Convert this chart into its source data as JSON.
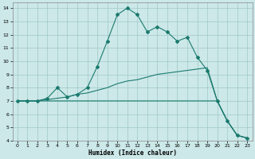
{
  "xlabel": "Humidex (Indice chaleur)",
  "bg_color": "#cce8e8",
  "grid_color": "#a0c8c8",
  "line_color": "#1a7a6e",
  "xlim": [
    -0.5,
    23.5
  ],
  "ylim": [
    4,
    14.4
  ],
  "xticks": [
    0,
    1,
    2,
    3,
    4,
    5,
    6,
    7,
    8,
    9,
    10,
    11,
    12,
    13,
    14,
    15,
    16,
    17,
    18,
    19,
    20,
    21,
    22,
    23
  ],
  "yticks": [
    4,
    5,
    6,
    7,
    8,
    9,
    10,
    11,
    12,
    13,
    14
  ],
  "series1_x": [
    0,
    1,
    2,
    3,
    4,
    5,
    6,
    7,
    8,
    9,
    10,
    11,
    12,
    13,
    14,
    15,
    16,
    17,
    18,
    19,
    20,
    21,
    22,
    23
  ],
  "series1_y": [
    7.0,
    7.0,
    7.0,
    7.2,
    8.0,
    7.3,
    7.5,
    8.0,
    9.6,
    11.5,
    13.5,
    14.0,
    13.5,
    12.2,
    12.6,
    12.2,
    11.5,
    11.8,
    10.3,
    9.3,
    7.0,
    5.5,
    4.4,
    4.2
  ],
  "series2_x": [
    0,
    1,
    2,
    3,
    4,
    5,
    6,
    7,
    8,
    9,
    10,
    11,
    12,
    13,
    14,
    15,
    16,
    17,
    18,
    19,
    20,
    21,
    22,
    23
  ],
  "series2_y": [
    7.0,
    7.0,
    7.0,
    7.1,
    7.2,
    7.3,
    7.5,
    7.6,
    7.8,
    8.0,
    8.3,
    8.5,
    8.6,
    8.8,
    9.0,
    9.1,
    9.2,
    9.3,
    9.4,
    9.5,
    7.0,
    5.5,
    4.4,
    4.2
  ],
  "series3_x": [
    0,
    1,
    2,
    3,
    4,
    5,
    6,
    7,
    8,
    9,
    10,
    11,
    12,
    13,
    14,
    15,
    16,
    17,
    18,
    19,
    20,
    21,
    22,
    23
  ],
  "series3_y": [
    7.0,
    7.0,
    7.0,
    7.0,
    7.0,
    7.0,
    7.0,
    7.0,
    7.0,
    7.0,
    7.0,
    7.0,
    7.0,
    7.0,
    7.0,
    7.0,
    7.0,
    7.0,
    7.0,
    7.0,
    7.0,
    5.5,
    4.4,
    4.2
  ]
}
